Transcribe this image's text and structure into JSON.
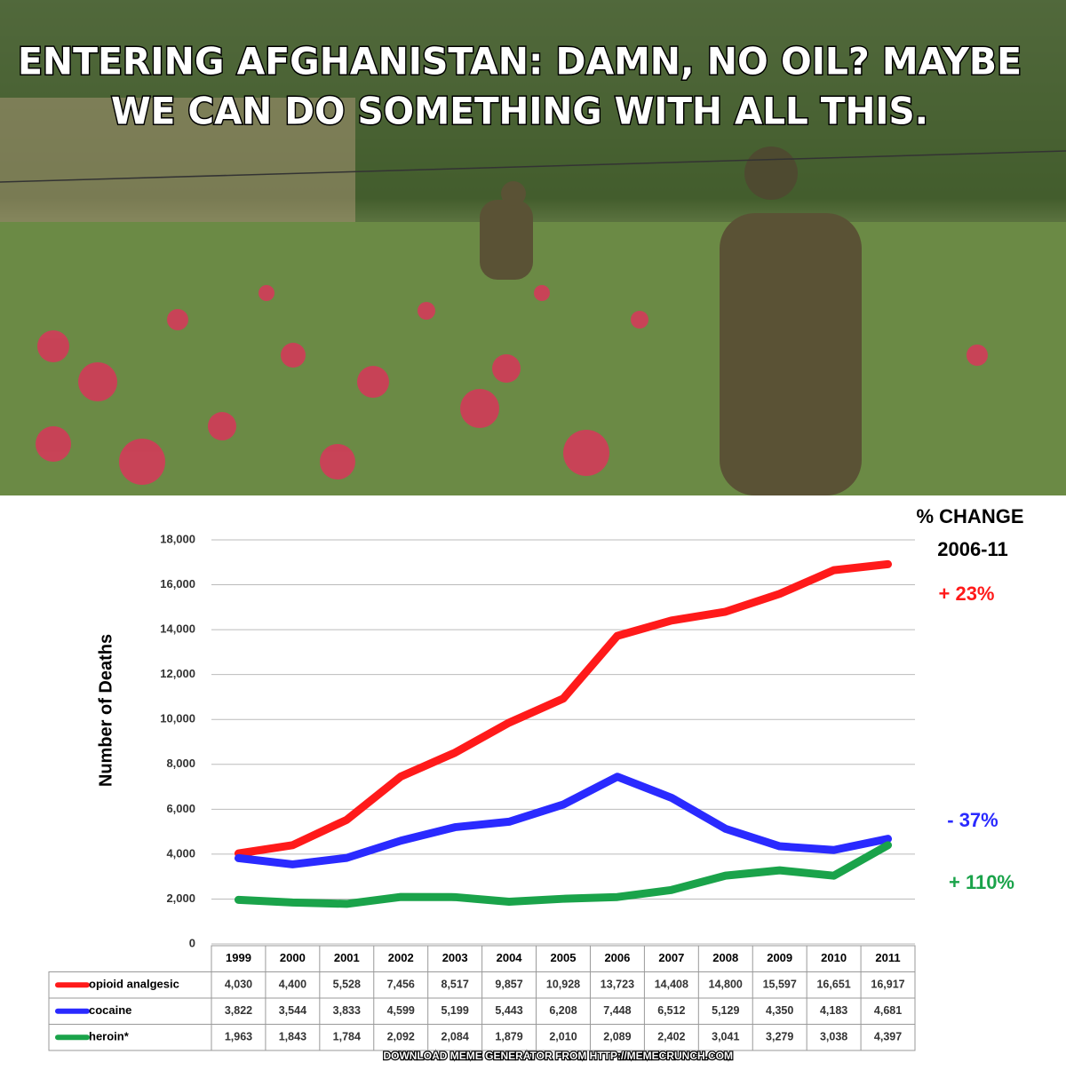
{
  "meme": {
    "caption": [
      "ENTERING AFGHANISTAN:  DAMN, NO OIL? MAYBE",
      "WE CAN DO SOMETHING WITH ALL THIS."
    ],
    "footer": "DOWNLOAD MEME GENERATOR FROM HTTP://MEMECRUNCH.COM"
  },
  "chart_data": {
    "type": "line",
    "y_label": "Number of Deaths",
    "categories": [
      "1999",
      "2000",
      "2001",
      "2002",
      "2003",
      "2004",
      "2005",
      "2006",
      "2007",
      "2008",
      "2009",
      "2010",
      "2011"
    ],
    "series": [
      {
        "name": "opioid analgesic",
        "color": "#ff1a1a",
        "values": [
          4030,
          4400,
          5528,
          7456,
          8517,
          9857,
          10928,
          13723,
          14408,
          14800,
          15597,
          16651,
          16917
        ],
        "value_labels": [
          "4,030",
          "4,400",
          "5,528",
          "7,456",
          "8,517",
          "9,857",
          "10,928",
          "13,723",
          "14,408",
          "14,800",
          "15,597",
          "16,651",
          "16,917"
        ]
      },
      {
        "name": "cocaine",
        "color": "#2a2aff",
        "values": [
          3822,
          3544,
          3833,
          4599,
          5199,
          5443,
          6208,
          7448,
          6512,
          5129,
          4350,
          4183,
          4681
        ],
        "value_labels": [
          "3,822",
          "3,544",
          "3,833",
          "4,599",
          "5,199",
          "5,443",
          "6,208",
          "7,448",
          "6,512",
          "5,129",
          "4,350",
          "4,183",
          "4,681"
        ]
      },
      {
        "name": "heroin*",
        "color": "#1aa34a",
        "values": [
          1963,
          1843,
          1784,
          2092,
          2084,
          1879,
          2010,
          2089,
          2402,
          3041,
          3279,
          3038,
          4397
        ],
        "value_labels": [
          "1,963",
          "1,843",
          "1,784",
          "2,092",
          "2,084",
          "1,879",
          "2,010",
          "2,089",
          "2,402",
          "3,041",
          "3,279",
          "3,038",
          "4,397"
        ]
      }
    ],
    "ylim": [
      0,
      18000
    ],
    "yticks": [
      0,
      {
        "value": 2000,
        "label": "2,000"
      },
      {
        "value": 4000,
        "label": "4,000"
      },
      {
        "value": 6000,
        "label": "6,000"
      },
      {
        "value": 8000,
        "label": "8,000"
      },
      {
        "value": 10000,
        "label": "10,000"
      },
      {
        "value": 12000,
        "label": "12,000"
      },
      {
        "value": 14000,
        "label": "14,000"
      },
      {
        "value": 16000,
        "label": "16,000"
      },
      {
        "value": 18000,
        "label": "18,000"
      }
    ],
    "grid": true,
    "change_header": [
      "% CHANGE",
      "2006-11"
    ],
    "annotations": [
      "+ 23%",
      "- 37%",
      "+ 110%"
    ]
  }
}
